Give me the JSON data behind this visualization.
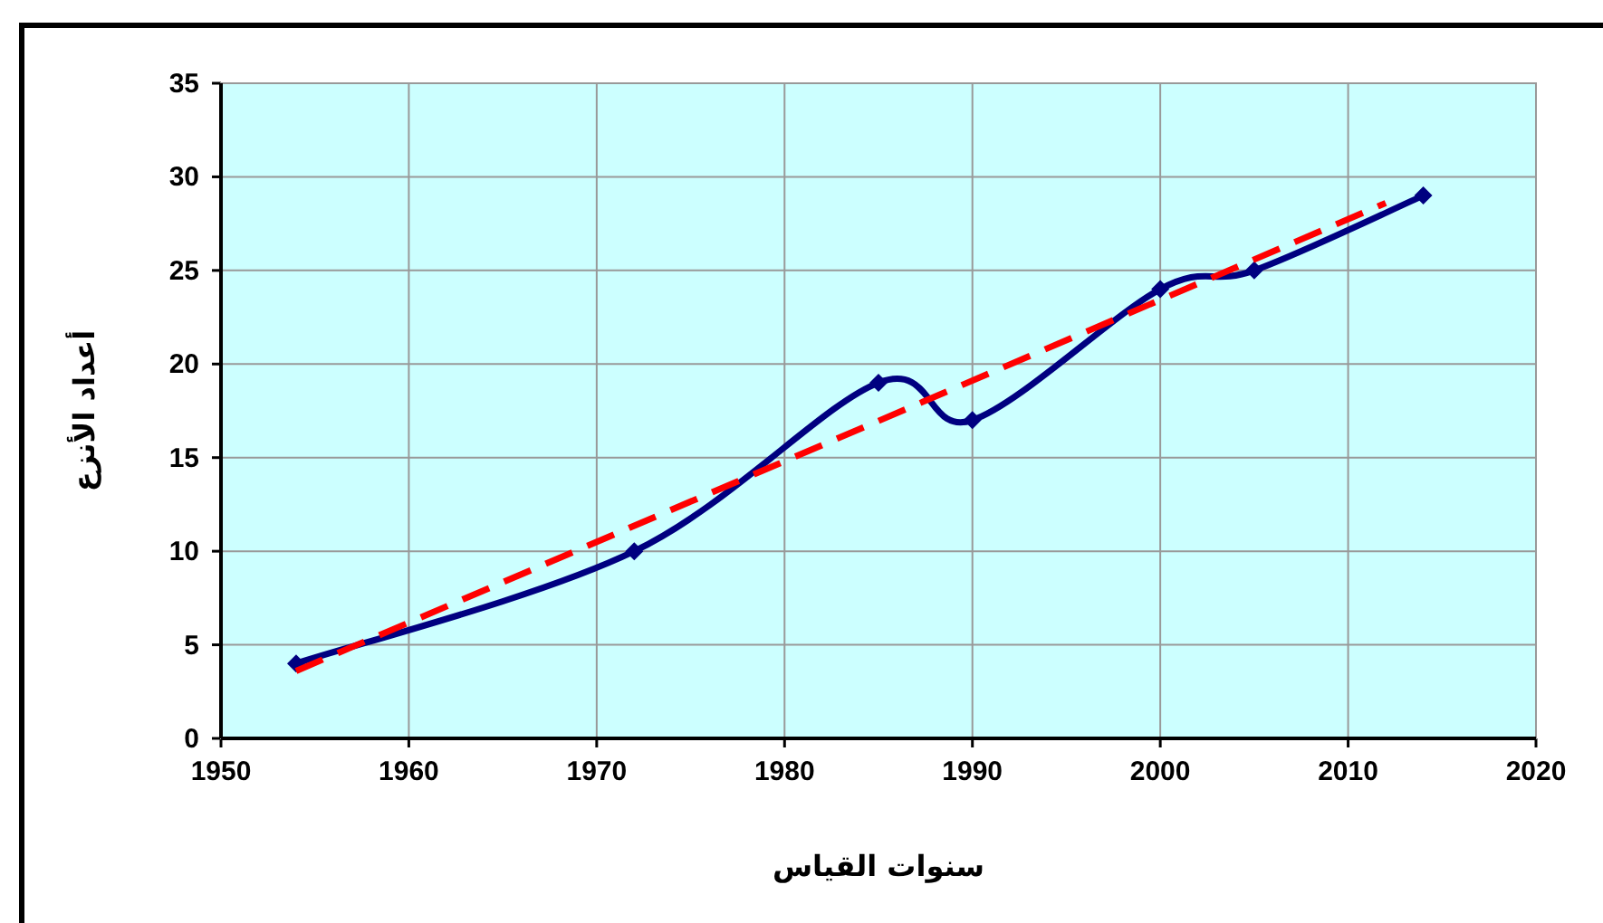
{
  "chart_data": {
    "type": "line",
    "xlabel": "سنوات القياس",
    "ylabel": "أعداد الأنزع",
    "xlim": [
      1950,
      2020
    ],
    "xticks": [
      1950,
      1960,
      1970,
      1980,
      1990,
      2000,
      2010,
      2020
    ],
    "ylim": [
      0,
      35
    ],
    "yticks": [
      0,
      5,
      10,
      15,
      20,
      25,
      30,
      35
    ],
    "grid": true,
    "series": [
      {
        "color": "#000080",
        "x": [
          1954,
          1972,
          1985,
          1990,
          2000,
          2005,
          2014
        ],
        "values": [
          4,
          10,
          19,
          17,
          24,
          25,
          29
        ],
        "marker": "diamond",
        "line_style": "solid"
      },
      {
        "type": "line",
        "color": "#ff0000",
        "x": [
          1954,
          2012
        ],
        "values": [
          3.6,
          28.6
        ],
        "marker": "none",
        "line_style": "dashed"
      }
    ]
  }
}
